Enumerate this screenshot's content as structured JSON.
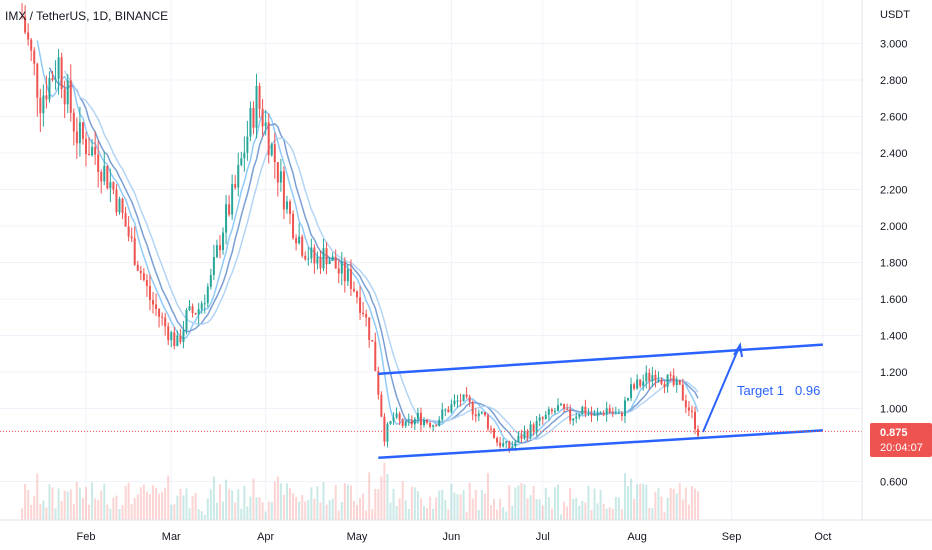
{
  "chart_data": {
    "type": "candlestick",
    "title": "IMX / TetherUS, 1D, BINANCE",
    "y_unit": "USDT",
    "ylim": [
      0.4,
      3.2
    ],
    "y_ticks": [
      "3.000",
      "2.800",
      "2.600",
      "2.400",
      "2.200",
      "2.000",
      "1.800",
      "1.600",
      "1.400",
      "1.200",
      "1.000",
      "0.600"
    ],
    "y_tick_values": [
      3.0,
      2.8,
      2.6,
      2.4,
      2.2,
      2.0,
      1.8,
      1.6,
      1.4,
      1.2,
      1.0,
      0.6
    ],
    "x_ticks": [
      "Feb",
      "Mar",
      "Apr",
      "May",
      "Jun",
      "Jul",
      "Aug",
      "Sep",
      "Oct"
    ],
    "x_tick_days": [
      31,
      59,
      90,
      120,
      151,
      181,
      212,
      243,
      273
    ],
    "price_points": [
      [
        10,
        3.15
      ],
      [
        16,
        2.7
      ],
      [
        22,
        2.9
      ],
      [
        28,
        2.5
      ],
      [
        34,
        2.4
      ],
      [
        40,
        2.2
      ],
      [
        46,
        1.9
      ],
      [
        52,
        1.6
      ],
      [
        57,
        1.45
      ],
      [
        61,
        1.35
      ],
      [
        64,
        1.5
      ],
      [
        68,
        1.55
      ],
      [
        72,
        1.7
      ],
      [
        76,
        2.0
      ],
      [
        80,
        2.2
      ],
      [
        84,
        2.5
      ],
      [
        87,
        2.7
      ],
      [
        90,
        2.55
      ],
      [
        94,
        2.3
      ],
      [
        98,
        2.05
      ],
      [
        102,
        1.9
      ],
      [
        106,
        1.8
      ],
      [
        110,
        1.85
      ],
      [
        114,
        1.75
      ],
      [
        118,
        1.7
      ],
      [
        122,
        1.55
      ],
      [
        125,
        1.35
      ],
      [
        127,
        1.1
      ],
      [
        129,
        0.85
      ],
      [
        132,
        0.95
      ],
      [
        136,
        0.9
      ],
      [
        140,
        0.95
      ],
      [
        145,
        0.92
      ],
      [
        150,
        1.0
      ],
      [
        154,
        1.05
      ],
      [
        158,
        1.0
      ],
      [
        162,
        0.95
      ],
      [
        166,
        0.82
      ],
      [
        170,
        0.78
      ],
      [
        174,
        0.85
      ],
      [
        178,
        0.9
      ],
      [
        182,
        0.95
      ],
      [
        186,
        1.0
      ],
      [
        190,
        0.95
      ],
      [
        194,
        1.0
      ],
      [
        198,
        0.95
      ],
      [
        202,
        1.0
      ],
      [
        206,
        0.95
      ],
      [
        210,
        1.1
      ],
      [
        214,
        1.15
      ],
      [
        218,
        1.2
      ],
      [
        222,
        1.15
      ],
      [
        226,
        1.1
      ],
      [
        229,
        1.0
      ],
      [
        232,
        0.875
      ]
    ],
    "channel": {
      "upper": [
        [
          127,
          1.19
        ],
        [
          273,
          1.35
        ]
      ],
      "lower": [
        [
          127,
          0.73
        ],
        [
          273,
          0.88
        ]
      ]
    },
    "current_price": "0.875",
    "countdown": "20:04:07",
    "annotations": [
      {
        "text": "Target 1",
        "color": "#2962ff"
      },
      {
        "text": "0.96",
        "color": "#2962ff"
      }
    ],
    "colors": {
      "up": "#26a69a",
      "down": "#ef5350",
      "channel": "#2962ff",
      "ma_light": "#90caf9",
      "ma_mid": "#b3d4f5",
      "ma_dark": "#7a9fd4",
      "price_line": "#ef5350"
    }
  }
}
